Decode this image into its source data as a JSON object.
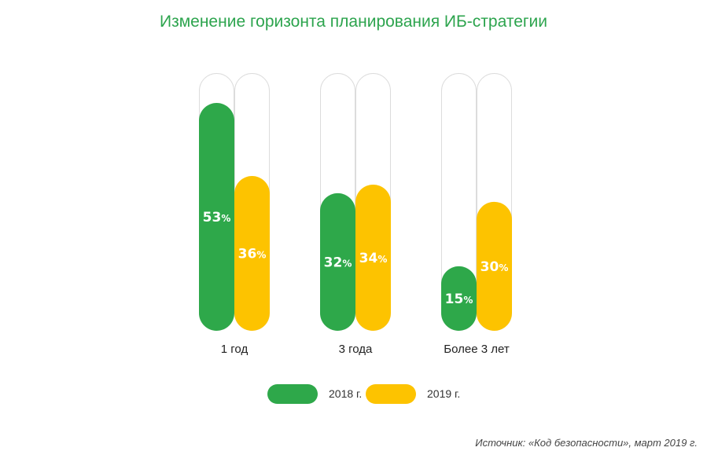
{
  "chart_data": {
    "type": "bar",
    "title": "Изменение горизонта планирования ИБ-стратегии",
    "categories": [
      "1 год",
      "3 года",
      "Более 3 лет"
    ],
    "series": [
      {
        "name": "2018 г.",
        "values": [
          53,
          32,
          15
        ],
        "color": "#2ea84a"
      },
      {
        "name": "2019 г.",
        "values": [
          36,
          34,
          30
        ],
        "color": "#fdc300"
      }
    ],
    "value_suffix": "%",
    "ylim": [
      0,
      60
    ],
    "legend_position": "bottom",
    "grid": false
  },
  "source": "Источник: «Код безопасности», март 2019 г.",
  "colors": {
    "title": "#2da44e",
    "track_border": "#dcdcdc"
  }
}
